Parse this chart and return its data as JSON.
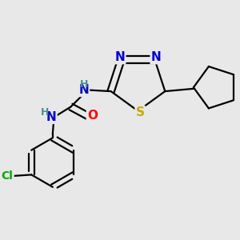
{
  "bg_color": "#e8e8e8",
  "bond_color": "#000000",
  "bond_width": 1.6,
  "atom_colors": {
    "N": "#0000cc",
    "S": "#ccaa00",
    "O": "#ff0000",
    "Cl": "#00aa00",
    "H": "#4a9090",
    "C": "#000000"
  },
  "font_size_atom": 11,
  "font_size_h": 9,
  "font_size_cl": 10
}
